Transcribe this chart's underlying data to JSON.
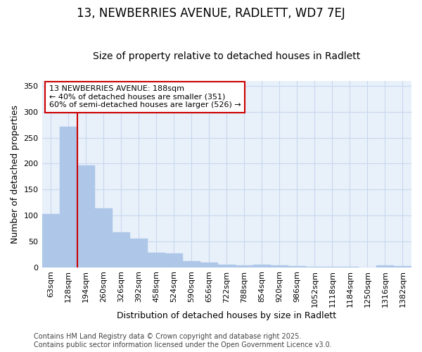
{
  "title": "13, NEWBERRIES AVENUE, RADLETT, WD7 7EJ",
  "subtitle": "Size of property relative to detached houses in Radlett",
  "xlabel": "Distribution of detached houses by size in Radlett",
  "ylabel": "Number of detached properties",
  "bar_color": "#aec6e8",
  "bar_edge_color": "#aec6e8",
  "grid_color": "#c8d8ee",
  "bg_color": "#ffffff",
  "plot_bg_color": "#e8f0fa",
  "categories": [
    "63sqm",
    "128sqm",
    "194sqm",
    "260sqm",
    "326sqm",
    "392sqm",
    "458sqm",
    "524sqm",
    "590sqm",
    "656sqm",
    "722sqm",
    "788sqm",
    "854sqm",
    "920sqm",
    "986sqm",
    "1052sqm",
    "1118sqm",
    "1184sqm",
    "1250sqm",
    "1316sqm",
    "1382sqm"
  ],
  "values": [
    103,
    271,
    197,
    114,
    68,
    55,
    28,
    27,
    11,
    9,
    5,
    3,
    5,
    3,
    2,
    1,
    1,
    1,
    0,
    3,
    2
  ],
  "ylim": [
    0,
    360
  ],
  "yticks": [
    0,
    50,
    100,
    150,
    200,
    250,
    300,
    350
  ],
  "marker_index": 2,
  "marker_label": "13 NEWBERRIES AVENUE: 188sqm\n← 40% of detached houses are smaller (351)\n60% of semi-detached houses are larger (526) →",
  "marker_color": "#cc0000",
  "annotation_box_edge": "#cc0000",
  "footer": "Contains HM Land Registry data © Crown copyright and database right 2025.\nContains public sector information licensed under the Open Government Licence v3.0.",
  "title_fontsize": 12,
  "subtitle_fontsize": 10,
  "label_fontsize": 9,
  "tick_fontsize": 8,
  "footer_fontsize": 7,
  "annot_fontsize": 8
}
